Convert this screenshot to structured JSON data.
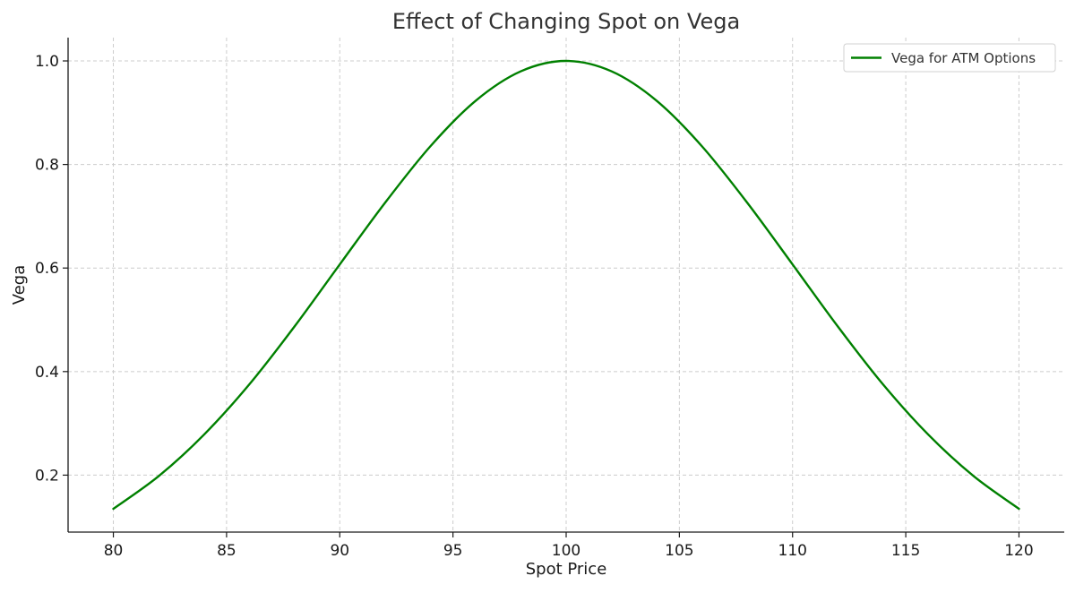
{
  "chart_data": {
    "type": "line",
    "title": "Effect of Changing Spot on Vega",
    "xlabel": "Spot Price",
    "ylabel": "Vega",
    "xlim": [
      78,
      122
    ],
    "ylim": [
      0.09,
      1.045
    ],
    "x_ticks": [
      80,
      85,
      90,
      95,
      100,
      105,
      110,
      115,
      120
    ],
    "y_ticks": [
      0.2,
      0.4,
      0.6,
      0.8,
      1.0
    ],
    "x_tick_labels": [
      "80",
      "85",
      "90",
      "95",
      "100",
      "105",
      "110",
      "115",
      "120"
    ],
    "y_tick_labels": [
      "0.2",
      "0.4",
      "0.6",
      "0.8",
      "1.0"
    ],
    "grid": true,
    "legend_position": "top-right",
    "series": [
      {
        "name": "Vega for ATM Options",
        "color": "#008000",
        "x": [
          80,
          82,
          84,
          86,
          88,
          90,
          92,
          94,
          96,
          98,
          100,
          102,
          104,
          106,
          108,
          110,
          112,
          114,
          116,
          118,
          120
        ],
        "y": [
          0.135,
          0.198,
          0.278,
          0.375,
          0.487,
          0.607,
          0.726,
          0.835,
          0.923,
          0.98,
          1.0,
          0.98,
          0.923,
          0.835,
          0.726,
          0.607,
          0.487,
          0.375,
          0.278,
          0.198,
          0.135
        ]
      }
    ]
  }
}
